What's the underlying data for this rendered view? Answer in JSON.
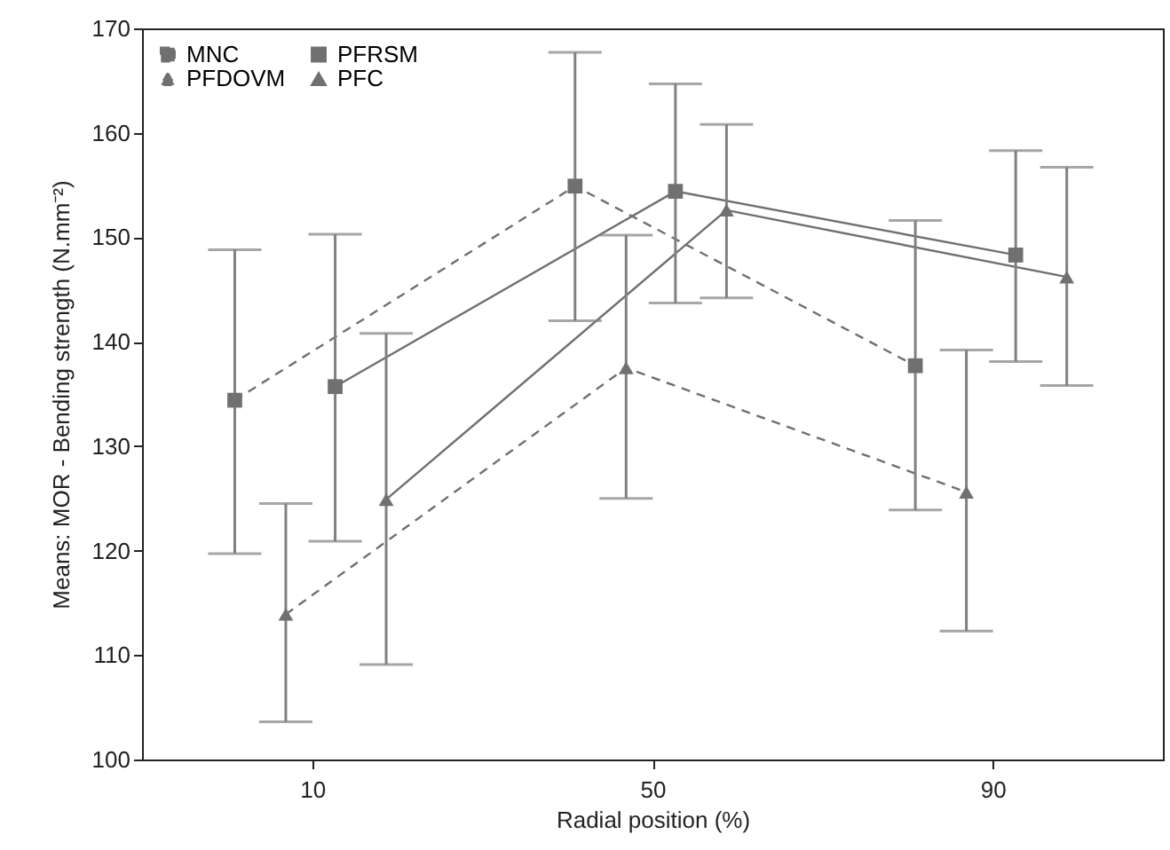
{
  "chart_data": {
    "type": "line",
    "xlabel": "Radial position (%)",
    "ylabel": "Means: MOR - Bending strength (N.mm⁻²)",
    "xlim": [
      -10,
      110
    ],
    "xticks": [
      10,
      50,
      90
    ],
    "ylim": [
      100,
      170
    ],
    "yticks": [
      100,
      110,
      120,
      130,
      140,
      150,
      160,
      170
    ],
    "legend": "top left",
    "series": [
      {
        "name": "MNC",
        "color": "#707070",
        "marker": "square",
        "line_style": "dashed",
        "x": [
          0.9,
          40.9,
          80.9
        ],
        "values": [
          134.4,
          154.9,
          137.7
        ],
        "errors": [
          [
            119.7,
            148.8
          ],
          [
            142.0,
            167.7
          ],
          [
            123.9,
            151.6
          ]
        ]
      },
      {
        "name": "PFDOVM",
        "color": "#707070",
        "marker": "triangle",
        "line_style": "dashed",
        "x": [
          6.9,
          46.9,
          86.9
        ],
        "values": [
          113.9,
          137.5,
          125.6
        ],
        "errors": [
          [
            103.6,
            124.5
          ],
          [
            125.0,
            150.2
          ],
          [
            112.3,
            139.2
          ]
        ]
      },
      {
        "name": "PFRSM",
        "color": "#707070",
        "marker": "square",
        "line_style": "solid",
        "x": [
          12.7,
          52.7,
          92.7
        ],
        "values": [
          135.7,
          154.4,
          148.3
        ],
        "errors": [
          [
            120.9,
            150.3
          ],
          [
            143.7,
            164.7
          ],
          [
            138.1,
            158.3
          ]
        ]
      },
      {
        "name": "PFC",
        "color": "#707070",
        "marker": "triangle",
        "line_style": "solid",
        "x": [
          18.7,
          58.7,
          98.7
        ],
        "values": [
          124.9,
          152.6,
          146.2
        ],
        "errors": [
          [
            109.1,
            140.8
          ],
          [
            144.2,
            160.8
          ],
          [
            135.8,
            156.7
          ]
        ]
      }
    ]
  }
}
